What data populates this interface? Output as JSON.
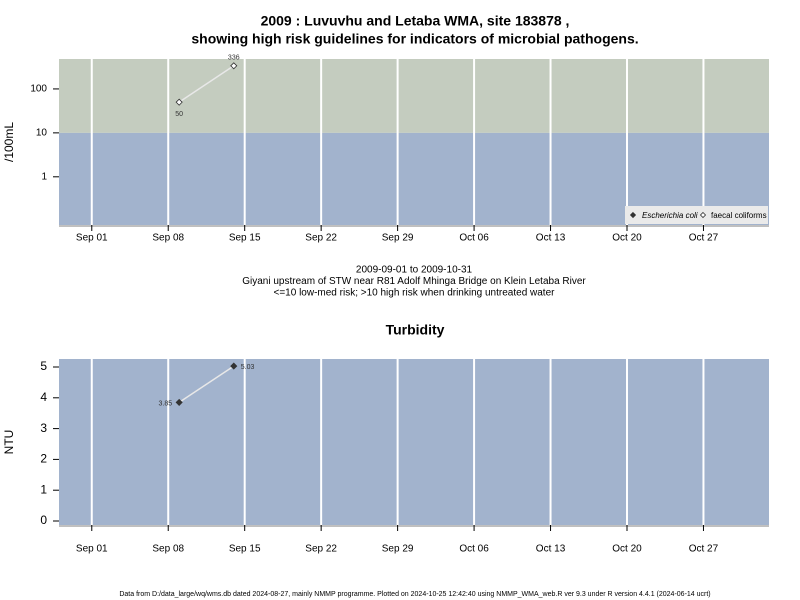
{
  "chart_data": [
    {
      "type": "line",
      "title": [
        "2009 : Luvuvhu and Letaba WMA, site 183878 ,",
        "showing high risk guidelines for indicators of microbial pathogens."
      ],
      "y_label": "/100mL",
      "log_y": true,
      "ylim": [
        0.08,
        480
      ],
      "yticks": [
        1,
        10,
        100
      ],
      "xlim": [
        "Aug 29",
        "Nov 02"
      ],
      "xticks": [
        "Sep 01",
        "Sep 08",
        "Sep 15",
        "Sep 22",
        "Sep 29",
        "Oct 06",
        "Oct 13",
        "Oct 20",
        "Oct 27"
      ],
      "grid": true,
      "threshold": 10,
      "band_colors": {
        "below": "#a2b3cd",
        "above": "#c4ccbf"
      },
      "legend": "bottom-right",
      "series": [
        {
          "name": "Escherichia coli",
          "marker": "filled",
          "color": "#333333",
          "x": [],
          "values": []
        },
        {
          "name": "faecal coliforms",
          "marker": "open",
          "color": "#ffffff",
          "x": [
            "Sep 09",
            "Sep 14"
          ],
          "values": [
            50,
            336
          ]
        }
      ],
      "notes": [
        "2009-09-01 to 2009-10-31",
        "Giyani upstream of STW near R81 Adolf Mhinga Bridge on Klein Letaba River",
        "<=10 low-med risk; >10 high risk when drinking untreated water"
      ]
    },
    {
      "type": "line",
      "title": [
        "Turbidity"
      ],
      "y_label": "NTU",
      "log_y": false,
      "ylim": [
        -0.13,
        5.26
      ],
      "yticks": [
        0,
        1,
        2,
        3,
        4,
        5
      ],
      "xlim": [
        "Aug 29",
        "Nov 02"
      ],
      "xticks": [
        "Sep 01",
        "Sep 08",
        "Sep 15",
        "Sep 22",
        "Sep 29",
        "Oct 06",
        "Oct 13",
        "Oct 20",
        "Oct 27"
      ],
      "grid": true,
      "plot_color": "#a2b3cd",
      "series": [
        {
          "marker": "filled",
          "color": "#333333",
          "x": [
            "Sep 09",
            "Sep 14"
          ],
          "values": [
            3.85,
            5.03
          ]
        }
      ]
    }
  ],
  "footer": "Data from D:/data_large/wq/wms.db dated 2024-08-27, mainly NMMP programme. Plotted on 2024-10-25 12:42:40 using NMMP_WMA_web.R ver 9.3 under R version 4.4.1 (2024-06-14 ucrt)"
}
